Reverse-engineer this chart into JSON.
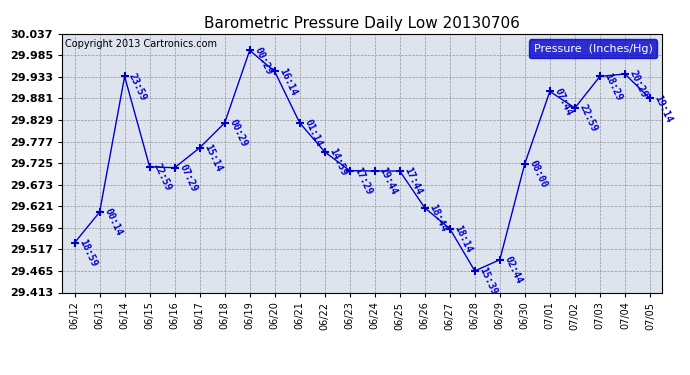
{
  "title": "Barometric Pressure Daily Low 20130706",
  "copyright": "Copyright 2013 Cartronics.com",
  "legend_label": "Pressure  (Inches/Hg)",
  "ylim": [
    29.413,
    30.037
  ],
  "yticks": [
    29.413,
    29.465,
    29.517,
    29.569,
    29.621,
    29.673,
    29.725,
    29.777,
    29.829,
    29.881,
    29.933,
    29.985,
    30.037
  ],
  "bg_color": "#ffffff",
  "plot_bg_color": "#dde4ee",
  "line_color": "#0000cc",
  "text_color": "#0000cc",
  "dates": [
    "06/12",
    "06/13",
    "06/14",
    "06/15",
    "06/16",
    "06/17",
    "06/18",
    "06/19",
    "06/20",
    "06/21",
    "06/22",
    "06/23",
    "06/24",
    "06/25",
    "06/26",
    "06/27",
    "06/28",
    "06/29",
    "06/30",
    "07/01",
    "07/02",
    "07/03",
    "07/04",
    "07/05"
  ],
  "values": [
    29.533,
    29.607,
    29.934,
    29.716,
    29.714,
    29.762,
    29.822,
    29.997,
    29.946,
    29.822,
    29.752,
    29.707,
    29.706,
    29.706,
    29.617,
    29.567,
    29.465,
    29.492,
    29.724,
    29.898,
    29.858,
    29.934,
    29.94,
    29.881
  ],
  "point_labels": [
    "18:59",
    "00:14",
    "23:59",
    "22:59",
    "07:29",
    "15:14",
    "00:29",
    "00:29",
    "16:14",
    "01:14",
    "14:59",
    "17:29",
    "19:44",
    "17:44",
    "18:44",
    "18:14",
    "15:39",
    "02:44",
    "08:00",
    "07:44",
    "22:59",
    "18:29",
    "20:29",
    "19:14"
  ],
  "label_rotation": -65,
  "label_fontsize": 7,
  "title_fontsize": 11,
  "xtick_fontsize": 7,
  "ytick_fontsize": 8,
  "copyright_fontsize": 7,
  "legend_fontsize": 8,
  "legend_bg_color": "#0000cc",
  "legend_text_color": "white",
  "figwidth": 6.9,
  "figheight": 3.75,
  "dpi": 100
}
